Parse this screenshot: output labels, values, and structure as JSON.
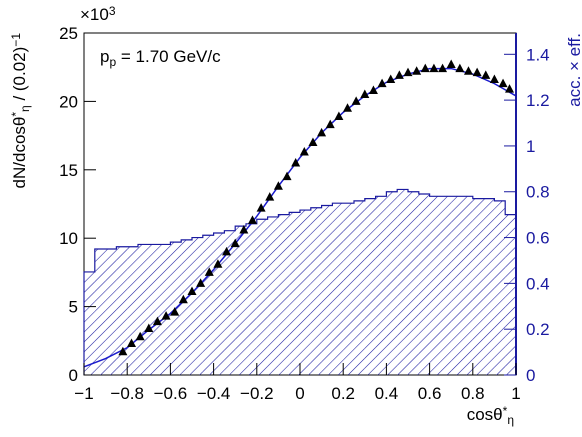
{
  "chart_data": {
    "type": "combo",
    "multiplier": [
      {
        "text": "×10"
      },
      {
        "text": "3",
        "pos": "sup"
      }
    ],
    "annotation": [
      {
        "text": "p"
      },
      {
        "text": "p",
        "pos": "sub"
      },
      {
        "text": " = 1.70 GeV/c"
      }
    ],
    "xlabel": [
      {
        "text": "cosθ"
      },
      {
        "text": "*",
        "pos": "sup"
      },
      {
        "text": "η",
        "pos": "sub"
      }
    ],
    "ylabel": [
      {
        "text": "dN/dcosθ"
      },
      {
        "text": "*",
        "pos": "sup"
      },
      {
        "text": "η",
        "pos": "sub"
      },
      {
        "text": " / (0.02)"
      },
      {
        "text": "−1",
        "pos": "sup"
      }
    ],
    "y2label": "acc. × eff.",
    "xlim": [
      -1,
      1
    ],
    "xticks": [
      {
        "value": -1,
        "label": "−1"
      },
      {
        "value": -0.8,
        "label": "−0.8"
      },
      {
        "value": -0.6,
        "label": "−0.6"
      },
      {
        "value": -0.4,
        "label": "−0.4"
      },
      {
        "value": -0.2,
        "label": "−0.2"
      },
      0,
      0.2,
      0.4,
      0.6,
      0.8,
      1
    ],
    "ylim": [
      0,
      25
    ],
    "yticks": [
      0,
      5,
      10,
      15,
      20,
      25
    ],
    "y2lim": [
      0,
      1.493
    ],
    "y2ticks": [
      0,
      0.2,
      0.4,
      0.6,
      0.8,
      1,
      1.2,
      1.4
    ],
    "acceptance": {
      "axis": "y2",
      "color": "#1a1aa0",
      "bins": [
        -1,
        -0.95,
        -0.9,
        -0.85,
        -0.8,
        -0.75,
        -0.7,
        -0.65,
        -0.6,
        -0.55,
        -0.5,
        -0.45,
        -0.4,
        -0.35,
        -0.3,
        -0.25,
        -0.2,
        -0.15,
        -0.1,
        -0.05,
        0,
        0.05,
        0.1,
        0.15,
        0.2,
        0.25,
        0.3,
        0.35,
        0.4,
        0.45,
        0.5,
        0.55,
        0.6,
        0.65,
        0.7,
        0.75,
        0.8,
        0.85,
        0.9,
        0.95,
        1
      ],
      "values": [
        0.45,
        0.55,
        0.55,
        0.56,
        0.56,
        0.57,
        0.57,
        0.57,
        0.58,
        0.59,
        0.6,
        0.61,
        0.62,
        0.63,
        0.65,
        0.66,
        0.68,
        0.69,
        0.7,
        0.71,
        0.72,
        0.73,
        0.74,
        0.75,
        0.75,
        0.76,
        0.77,
        0.78,
        0.8,
        0.81,
        0.8,
        0.79,
        0.78,
        0.78,
        0.78,
        0.78,
        0.77,
        0.77,
        0.76,
        0.7
      ]
    },
    "points": {
      "color": "#000000",
      "x": [
        -0.82,
        -0.78,
        -0.74,
        -0.7,
        -0.66,
        -0.62,
        -0.58,
        -0.54,
        -0.5,
        -0.46,
        -0.42,
        -0.38,
        -0.34,
        -0.3,
        -0.26,
        -0.22,
        -0.18,
        -0.14,
        -0.1,
        -0.06,
        -0.02,
        0.02,
        0.06,
        0.1,
        0.14,
        0.18,
        0.22,
        0.26,
        0.3,
        0.34,
        0.38,
        0.42,
        0.46,
        0.5,
        0.54,
        0.58,
        0.62,
        0.66,
        0.7,
        0.74,
        0.78,
        0.82,
        0.86,
        0.9,
        0.94,
        0.97
      ],
      "values": [
        1.7,
        2.3,
        2.8,
        3.4,
        3.9,
        4.3,
        4.6,
        5.5,
        6.1,
        6.7,
        7.5,
        8.1,
        9.0,
        9.6,
        10.6,
        11.3,
        12.2,
        13.0,
        13.8,
        14.5,
        15.5,
        16.3,
        17.0,
        17.7,
        18.3,
        18.9,
        19.5,
        20.0,
        20.5,
        20.8,
        21.3,
        21.6,
        21.9,
        22.1,
        22.2,
        22.4,
        22.4,
        22.4,
        22.7,
        22.4,
        22.2,
        22.1,
        21.9,
        21.6,
        21.3,
        20.9
      ]
    },
    "fit": {
      "color": "#1a1acc",
      "x": [
        -1,
        -0.9,
        -0.8,
        -0.7,
        -0.6,
        -0.5,
        -0.4,
        -0.3,
        -0.2,
        -0.1,
        0,
        0.1,
        0.2,
        0.3,
        0.4,
        0.5,
        0.6,
        0.7,
        0.8,
        0.9,
        1
      ],
      "values": [
        0.6,
        1.2,
        2.0,
        3.3,
        4.5,
        6.0,
        7.7,
        9.6,
        11.6,
        13.8,
        15.9,
        17.7,
        19.2,
        20.4,
        21.4,
        22.0,
        22.4,
        22.4,
        22.0,
        21.3,
        20.4
      ]
    }
  }
}
